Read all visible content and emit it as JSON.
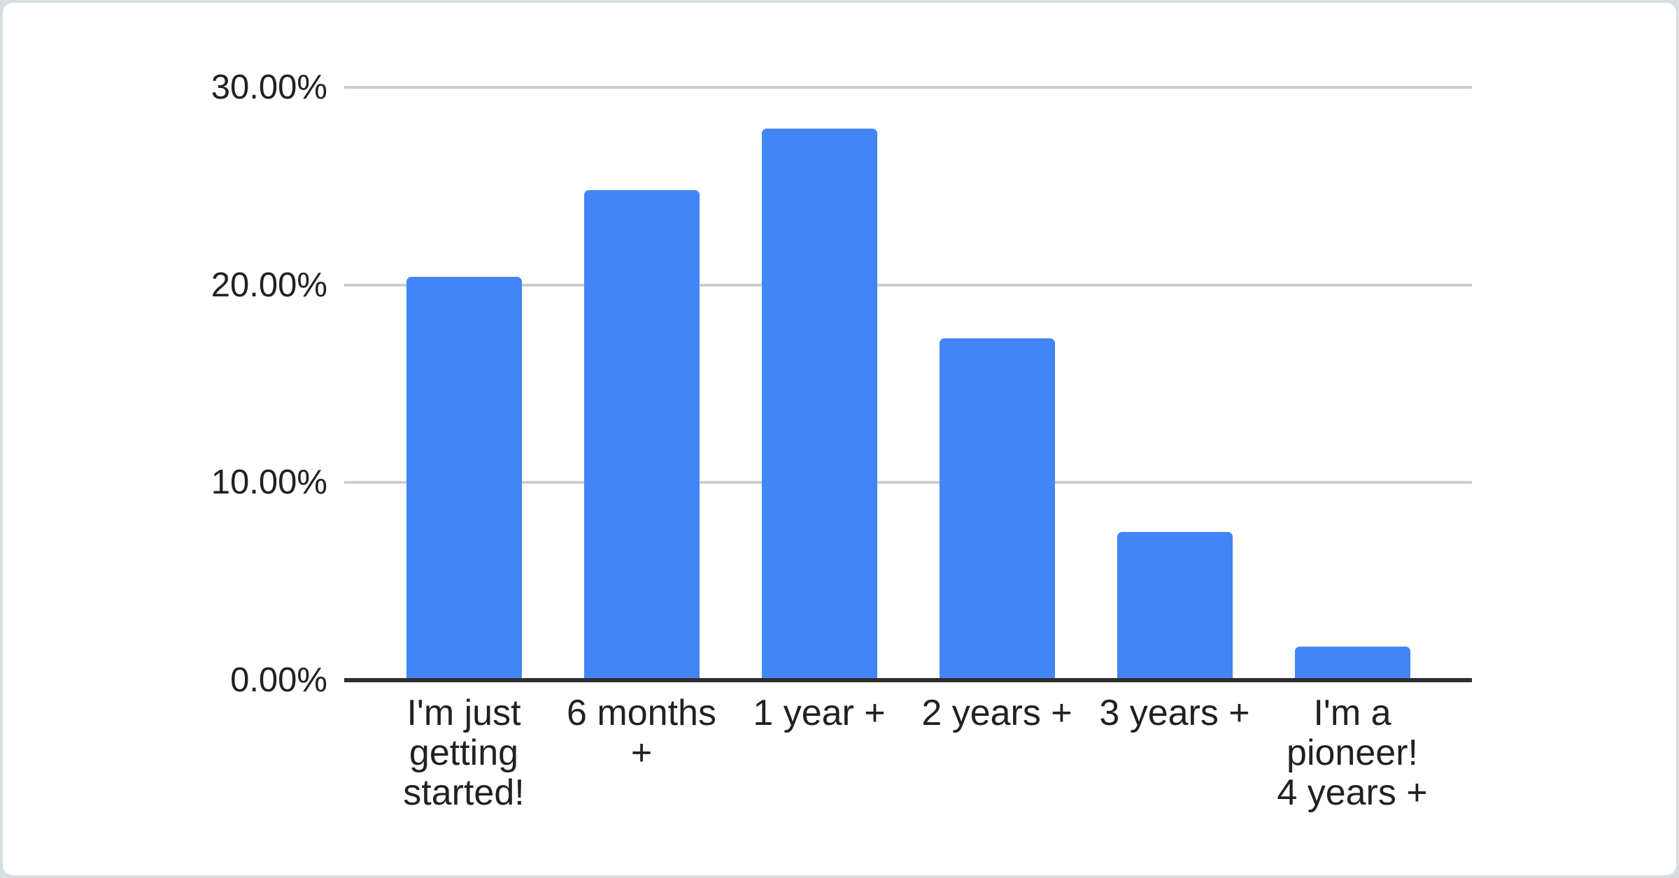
{
  "page": {
    "background_color": "#d7dde2",
    "card_background_color": "#ffffff"
  },
  "chart_data": {
    "type": "bar",
    "title": "",
    "xlabel": "",
    "ylabel": "",
    "categories": [
      "I'm just getting started!",
      "6 months +",
      "1 year +",
      "2 years +",
      "3 years +",
      "I'm a pioneer! 4 years +"
    ],
    "category_lines": [
      [
        "I'm just",
        "getting",
        "started!"
      ],
      [
        "6 months",
        "+"
      ],
      [
        "1 year +"
      ],
      [
        "2 years +"
      ],
      [
        "3 years +"
      ],
      [
        "I'm a",
        "pioneer!",
        "4 years +"
      ]
    ],
    "values": [
      20.4,
      24.8,
      27.9,
      17.3,
      7.5,
      1.7
    ],
    "unit": "%",
    "ylim": [
      0,
      30
    ],
    "y_ticks": [
      "30.00%",
      "20.00%",
      "10.00%",
      "0.00%"
    ],
    "grid": "horizontal",
    "legend_position": "none",
    "bar_color": "#4285f4",
    "gridline_color": "#cccccc",
    "axis_line_color": "#2e2e2e",
    "label_color": "#212121"
  }
}
